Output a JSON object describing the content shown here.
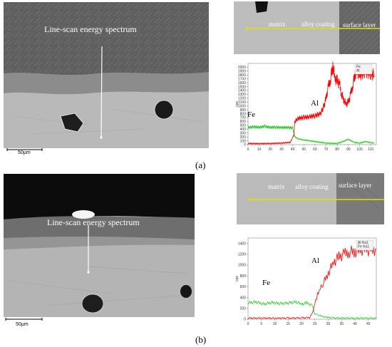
{
  "figure": {
    "panel_a": {
      "caption": "(a)",
      "sem_label": "Line-scan energy spectrum",
      "scale_bar_label": "50μm",
      "strip_labels": {
        "matrix": "matrix",
        "alloy": "alloy coating",
        "surface": "surface layer"
      },
      "element_labels": {
        "fe": "Fe",
        "al": "Al"
      },
      "legend": [
        "Fe",
        "Al"
      ],
      "ylabel": "cps"
    },
    "panel_b": {
      "caption": "(b)",
      "sem_label": "Line-scan energy spectrum",
      "scale_bar_label": "50μm",
      "strip_labels": {
        "matrix": "matrix",
        "alloy": "alloy coating",
        "surface": "surface layer"
      },
      "element_labels": {
        "fe": "Fe",
        "al": "Al"
      },
      "legend": [
        "Al Ka1",
        "Fe Ka1"
      ],
      "ylabel": "cps"
    }
  },
  "colors": {
    "al": "#ff0000",
    "fe": "#22cc22",
    "scan_line": "#d8d800"
  },
  "chart_data": [
    {
      "type": "line",
      "panel": "a",
      "ylabel": "cps",
      "xlim": [
        0,
        115
      ],
      "ylim": [
        0,
        2100
      ],
      "xticks": [
        0,
        10,
        20,
        30,
        40,
        50,
        60,
        70,
        80,
        90,
        100,
        110
      ],
      "yticks": [
        0,
        100,
        200,
        300,
        400,
        500,
        600,
        700,
        800,
        900,
        1000,
        1100,
        1200,
        1300,
        1400,
        1500,
        1600,
        1700,
        1800,
        1900,
        2000
      ],
      "series": [
        {
          "name": "Fe",
          "points": [
            [
              0,
              440
            ],
            [
              5,
              460
            ],
            [
              10,
              450
            ],
            [
              15,
              470
            ],
            [
              20,
              445
            ],
            [
              25,
              455
            ],
            [
              30,
              440
            ],
            [
              35,
              450
            ],
            [
              40,
              430
            ],
            [
              42,
              200
            ],
            [
              45,
              150
            ],
            [
              50,
              120
            ],
            [
              55,
              100
            ],
            [
              60,
              80
            ],
            [
              70,
              40
            ],
            [
              80,
              30
            ],
            [
              85,
              80
            ],
            [
              90,
              140
            ],
            [
              95,
              60
            ],
            [
              100,
              40
            ],
            [
              105,
              80
            ],
            [
              110,
              50
            ],
            [
              113,
              40
            ]
          ]
        },
        {
          "name": "Al",
          "points": [
            [
              0,
              30
            ],
            [
              10,
              25
            ],
            [
              20,
              30
            ],
            [
              30,
              40
            ],
            [
              38,
              60
            ],
            [
              41,
              250
            ],
            [
              42,
              600
            ],
            [
              45,
              680
            ],
            [
              50,
              700
            ],
            [
              55,
              720
            ],
            [
              60,
              750
            ],
            [
              65,
              800
            ],
            [
              68,
              1000
            ],
            [
              70,
              1200
            ],
            [
              72,
              1500
            ],
            [
              74,
              1700
            ],
            [
              76,
              2050
            ],
            [
              78,
              1700
            ],
            [
              80,
              1650
            ],
            [
              82,
              1550
            ],
            [
              84,
              1300
            ],
            [
              86,
              1150
            ],
            [
              88,
              1050
            ],
            [
              90,
              1100
            ],
            [
              92,
              1300
            ],
            [
              94,
              1550
            ],
            [
              96,
              1850
            ],
            [
              98,
              1900
            ],
            [
              100,
              1800
            ],
            [
              105,
              1900
            ],
            [
              110,
              1850
            ],
            [
              113,
              1800
            ]
          ]
        }
      ]
    },
    {
      "type": "line",
      "panel": "b",
      "ylabel": "cps",
      "xlim": [
        0,
        48
      ],
      "ylim": [
        0,
        1500
      ],
      "xticks": [
        0,
        5,
        10,
        15,
        20,
        25,
        30,
        35,
        40,
        45
      ],
      "yticks": [
        0,
        200,
        400,
        600,
        800,
        1000,
        1200,
        1400
      ],
      "series": [
        {
          "name": "Fe Ka1",
          "points": [
            [
              0,
              300
            ],
            [
              3,
              320
            ],
            [
              6,
              280
            ],
            [
              9,
              310
            ],
            [
              12,
              290
            ],
            [
              15,
              300
            ],
            [
              18,
              320
            ],
            [
              20,
              280
            ],
            [
              22,
              300
            ],
            [
              24,
              250
            ],
            [
              25,
              100
            ],
            [
              26,
              80
            ],
            [
              28,
              50
            ],
            [
              30,
              30
            ],
            [
              35,
              20
            ],
            [
              40,
              20
            ],
            [
              45,
              20
            ],
            [
              48,
              15
            ]
          ]
        },
        {
          "name": "Al Ka1",
          "points": [
            [
              0,
              20
            ],
            [
              5,
              20
            ],
            [
              10,
              20
            ],
            [
              15,
              20
            ],
            [
              20,
              25
            ],
            [
              23,
              30
            ],
            [
              24,
              100
            ],
            [
              25,
              300
            ],
            [
              26,
              450
            ],
            [
              27,
              550
            ],
            [
              28,
              650
            ],
            [
              30,
              850
            ],
            [
              32,
              1050
            ],
            [
              34,
              1150
            ],
            [
              36,
              1200
            ],
            [
              38,
              1250
            ],
            [
              40,
              1250
            ],
            [
              42,
              1280
            ],
            [
              44,
              1300
            ],
            [
              46,
              1250
            ],
            [
              48,
              1300
            ]
          ]
        }
      ]
    }
  ]
}
